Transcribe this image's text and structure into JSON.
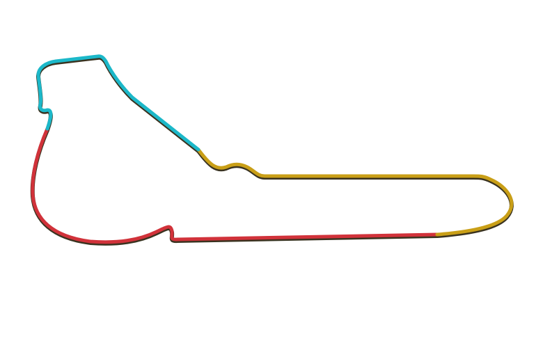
{
  "track": {
    "sectors": [
      {
        "color": "#d1323a"
      },
      {
        "color": "#c99f17"
      },
      {
        "color": "#1cb8c9"
      }
    ]
  }
}
